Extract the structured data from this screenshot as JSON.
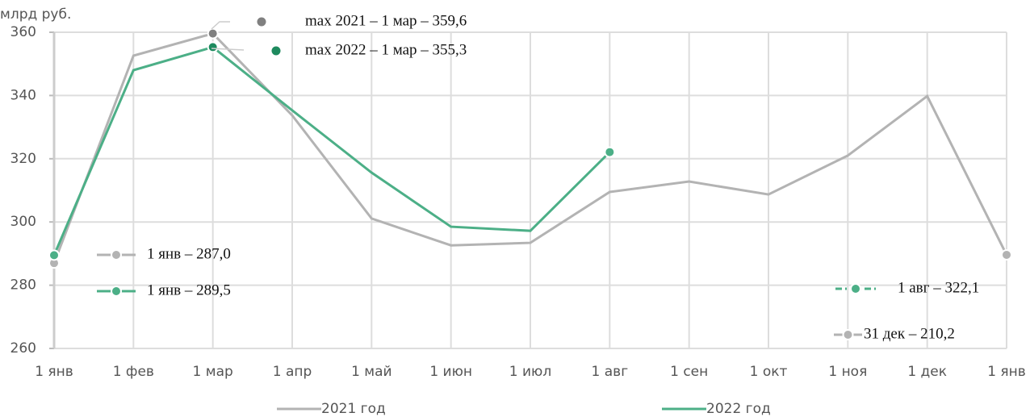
{
  "chart_data": {
    "type": "line",
    "y_label": "млрд руб.",
    "categories": [
      "1 янв",
      "1 фев",
      "1 мар",
      "1 апр",
      "1 май",
      "1 июн",
      "1 июл",
      "1 авг",
      "1 сен",
      "1 окт",
      "1 ноя",
      "1 дек",
      "1 янв"
    ],
    "series": [
      {
        "name": "2021 год",
        "color": "#b3b3b3",
        "values": [
          287.0,
          352.6,
          359.6,
          333.7,
          301.1,
          292.6,
          293.4,
          309.5,
          312.8,
          308.7,
          321.0,
          339.8,
          289.6
        ]
      },
      {
        "name": "2022 год",
        "color": "#4caf87",
        "values": [
          289.5,
          348.0,
          355.3,
          335.3,
          315.6,
          298.5,
          297.2,
          322.1,
          null,
          null,
          null,
          null,
          null
        ]
      }
    ],
    "ylim": [
      260,
      360
    ],
    "yticks": [
      260,
      280,
      300,
      320,
      340,
      360
    ],
    "grid": true,
    "annotations": [
      "max 2021 – 1 мар – 359,6",
      "max 2022 – 1 мар – 355,3",
      "1 янв – 287,0",
      "1 янв – 289,5",
      "1 авг – 322,1",
      "31 дек – 210,2"
    ]
  }
}
